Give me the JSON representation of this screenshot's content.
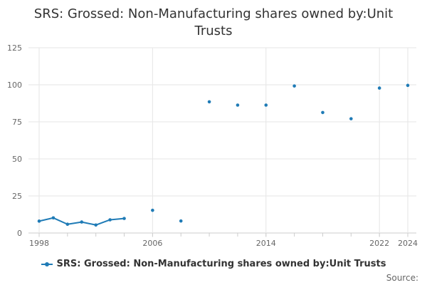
{
  "chart_data": {
    "type": "line",
    "title": "SRS: Grossed: Non-Manufacturing shares owned by:Unit Trusts",
    "xlabel": "",
    "ylabel": "",
    "ylim": [
      0,
      125
    ],
    "xlim": [
      1998,
      2024
    ],
    "y_ticks": [
      "0",
      "25",
      "50",
      "75",
      "100",
      "125"
    ],
    "y_tick_values": [
      0,
      25,
      50,
      75,
      100,
      125
    ],
    "x_ticks": [
      "1998",
      "2006",
      "2014",
      "2022",
      "2024"
    ],
    "x_tick_values": [
      1998,
      2006,
      2014,
      2022,
      2024
    ],
    "series": [
      {
        "name": "SRS: Grossed: Non-Manufacturing shares owned by:Unit Trusts",
        "color": "#1f7bb6",
        "x": [
          1998,
          1999,
          2000,
          2001,
          2002,
          2003,
          2004,
          2006,
          2008,
          2010,
          2012,
          2014,
          2016,
          2018,
          2020,
          2022,
          2024
        ],
        "values": [
          8,
          10.2,
          5.9,
          7.4,
          5.4,
          8.9,
          9.8,
          15.3,
          8.1,
          88.5,
          86.3,
          86.3,
          99.2,
          81.3,
          77.1,
          97.8,
          99.6
        ]
      }
    ]
  },
  "legend": {
    "label": "SRS: Grossed: Non-Manufacturing shares owned by:Unit Trusts"
  },
  "footer": {
    "source": "Source:"
  }
}
